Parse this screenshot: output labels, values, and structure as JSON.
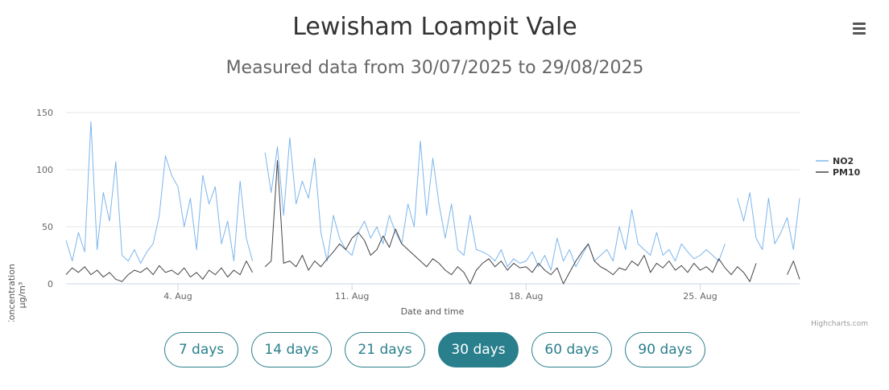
{
  "title": "Lewisham Loampit Vale",
  "subtitle": "Measured data from 30/07/2025 to 29/08/2025",
  "credits": "Highcharts.com",
  "menu_icon": "hamburger-menu-icon",
  "range_buttons": [
    {
      "label": "7 days",
      "active": false
    },
    {
      "label": "14 days",
      "active": false
    },
    {
      "label": "21 days",
      "active": false
    },
    {
      "label": "30 days",
      "active": true
    },
    {
      "label": "60 days",
      "active": false
    },
    {
      "label": "90 days",
      "active": false
    }
  ],
  "colors": {
    "accent": "#2a7f8c",
    "no2": "#7cb5ec",
    "pm10": "#434348"
  },
  "chart_data": {
    "type": "line",
    "xlabel": "Date and time",
    "ylabel": "Concentration",
    "yunit": "µg/m³",
    "ylim": [
      0,
      150
    ],
    "yticks": [
      0,
      50,
      100,
      150
    ],
    "xlim": [
      "2025-07-30T12:00",
      "2025-08-29T00:00"
    ],
    "xticks": [
      {
        "date": "2025-08-04",
        "label": "4. Aug"
      },
      {
        "date": "2025-08-11",
        "label": "11. Aug"
      },
      {
        "date": "2025-08-18",
        "label": "18. Aug"
      },
      {
        "date": "2025-08-25",
        "label": "25. Aug"
      }
    ],
    "grid": true,
    "legend": "right",
    "series": [
      {
        "name": "NO2",
        "color": "#7cb5ec",
        "points": [
          [
            "2025-07-30T12:00",
            38
          ],
          [
            "2025-07-30T18:00",
            20
          ],
          [
            "2025-07-31T00:00",
            45
          ],
          [
            "2025-07-31T06:00",
            28
          ],
          [
            "2025-07-31T12:00",
            142
          ],
          [
            "2025-07-31T18:00",
            30
          ],
          [
            "2025-08-01T00:00",
            80
          ],
          [
            "2025-08-01T06:00",
            55
          ],
          [
            "2025-08-01T12:00",
            107
          ],
          [
            "2025-08-01T18:00",
            25
          ],
          [
            "2025-08-02T00:00",
            20
          ],
          [
            "2025-08-02T06:00",
            30
          ],
          [
            "2025-08-02T12:00",
            18
          ],
          [
            "2025-08-02T18:00",
            28
          ],
          [
            "2025-08-03T00:00",
            35
          ],
          [
            "2025-08-03T06:00",
            60
          ],
          [
            "2025-08-03T12:00",
            112
          ],
          [
            "2025-08-03T18:00",
            95
          ],
          [
            "2025-08-04T00:00",
            85
          ],
          [
            "2025-08-04T06:00",
            50
          ],
          [
            "2025-08-04T12:00",
            75
          ],
          [
            "2025-08-04T18:00",
            30
          ],
          [
            "2025-08-05T00:00",
            95
          ],
          [
            "2025-08-05T06:00",
            70
          ],
          [
            "2025-08-05T12:00",
            85
          ],
          [
            "2025-08-05T18:00",
            35
          ],
          [
            "2025-08-06T00:00",
            55
          ],
          [
            "2025-08-06T06:00",
            20
          ],
          [
            "2025-08-06T12:00",
            90
          ],
          [
            "2025-08-06T18:00",
            40
          ],
          [
            "2025-08-07T00:00",
            20
          ],
          null,
          [
            "2025-08-07T12:00",
            115
          ],
          [
            "2025-08-07T18:00",
            80
          ],
          [
            "2025-08-08T00:00",
            120
          ],
          [
            "2025-08-08T06:00",
            60
          ],
          [
            "2025-08-08T12:00",
            128
          ],
          [
            "2025-08-08T18:00",
            70
          ],
          [
            "2025-08-09T00:00",
            90
          ],
          [
            "2025-08-09T06:00",
            75
          ],
          [
            "2025-08-09T12:00",
            110
          ],
          [
            "2025-08-09T18:00",
            45
          ],
          [
            "2025-08-10T00:00",
            20
          ],
          [
            "2025-08-10T06:00",
            60
          ],
          [
            "2025-08-10T12:00",
            40
          ],
          [
            "2025-08-10T18:00",
            30
          ],
          [
            "2025-08-11T00:00",
            25
          ],
          [
            "2025-08-11T06:00",
            45
          ],
          [
            "2025-08-11T12:00",
            55
          ],
          [
            "2025-08-11T18:00",
            40
          ],
          [
            "2025-08-12T00:00",
            50
          ],
          [
            "2025-08-12T06:00",
            35
          ],
          [
            "2025-08-12T12:00",
            60
          ],
          [
            "2025-08-12T18:00",
            45
          ],
          [
            "2025-08-13T00:00",
            35
          ],
          [
            "2025-08-13T06:00",
            70
          ],
          [
            "2025-08-13T12:00",
            50
          ],
          [
            "2025-08-13T18:00",
            125
          ],
          [
            "2025-08-14T00:00",
            60
          ],
          [
            "2025-08-14T06:00",
            110
          ],
          [
            "2025-08-14T12:00",
            70
          ],
          [
            "2025-08-14T18:00",
            40
          ],
          [
            "2025-08-15T00:00",
            70
          ],
          [
            "2025-08-15T06:00",
            30
          ],
          [
            "2025-08-15T12:00",
            25
          ],
          [
            "2025-08-15T18:00",
            60
          ],
          [
            "2025-08-16T00:00",
            30
          ],
          [
            "2025-08-16T06:00",
            28
          ],
          [
            "2025-08-16T12:00",
            25
          ],
          [
            "2025-08-16T18:00",
            20
          ],
          [
            "2025-08-17T00:00",
            30
          ],
          [
            "2025-08-17T06:00",
            15
          ],
          [
            "2025-08-17T12:00",
            22
          ],
          [
            "2025-08-17T18:00",
            18
          ],
          [
            "2025-08-18T00:00",
            20
          ],
          [
            "2025-08-18T06:00",
            28
          ],
          [
            "2025-08-18T12:00",
            15
          ],
          [
            "2025-08-18T18:00",
            25
          ],
          [
            "2025-08-19T00:00",
            12
          ],
          [
            "2025-08-19T06:00",
            40
          ],
          [
            "2025-08-19T12:00",
            20
          ],
          [
            "2025-08-19T18:00",
            30
          ],
          [
            "2025-08-20T00:00",
            15
          ],
          [
            "2025-08-20T06:00",
            25
          ],
          [
            "2025-08-20T12:00",
            35
          ],
          [
            "2025-08-20T18:00",
            20
          ],
          [
            "2025-08-21T00:00",
            25
          ],
          [
            "2025-08-21T06:00",
            30
          ],
          [
            "2025-08-21T12:00",
            20
          ],
          [
            "2025-08-21T18:00",
            50
          ],
          [
            "2025-08-22T00:00",
            30
          ],
          [
            "2025-08-22T06:00",
            65
          ],
          [
            "2025-08-22T12:00",
            35
          ],
          [
            "2025-08-22T18:00",
            30
          ],
          [
            "2025-08-23T00:00",
            25
          ],
          [
            "2025-08-23T06:00",
            45
          ],
          [
            "2025-08-23T12:00",
            25
          ],
          [
            "2025-08-23T18:00",
            30
          ],
          [
            "2025-08-24T00:00",
            20
          ],
          [
            "2025-08-24T06:00",
            35
          ],
          [
            "2025-08-24T12:00",
            28
          ],
          [
            "2025-08-24T18:00",
            22
          ],
          [
            "2025-08-25T00:00",
            25
          ],
          [
            "2025-08-25T06:00",
            30
          ],
          [
            "2025-08-25T12:00",
            25
          ],
          [
            "2025-08-25T18:00",
            20
          ],
          [
            "2025-08-26T00:00",
            35
          ],
          null,
          [
            "2025-08-26T12:00",
            75
          ],
          [
            "2025-08-26T18:00",
            55
          ],
          [
            "2025-08-27T00:00",
            80
          ],
          [
            "2025-08-27T06:00",
            40
          ],
          [
            "2025-08-27T12:00",
            30
          ],
          [
            "2025-08-27T18:00",
            75
          ],
          [
            "2025-08-28T00:00",
            35
          ],
          [
            "2025-08-28T06:00",
            45
          ],
          [
            "2025-08-28T12:00",
            58
          ],
          [
            "2025-08-28T18:00",
            30
          ],
          [
            "2025-08-29T00:00",
            75
          ]
        ]
      },
      {
        "name": "PM10",
        "color": "#434348",
        "points": [
          [
            "2025-07-30T12:00",
            8
          ],
          [
            "2025-07-30T18:00",
            14
          ],
          [
            "2025-07-31T00:00",
            10
          ],
          [
            "2025-07-31T06:00",
            15
          ],
          [
            "2025-07-31T12:00",
            8
          ],
          [
            "2025-07-31T18:00",
            12
          ],
          [
            "2025-08-01T00:00",
            6
          ],
          [
            "2025-08-01T06:00",
            10
          ],
          [
            "2025-08-01T12:00",
            4
          ],
          [
            "2025-08-01T18:00",
            2
          ],
          [
            "2025-08-02T00:00",
            8
          ],
          [
            "2025-08-02T06:00",
            12
          ],
          [
            "2025-08-02T12:00",
            10
          ],
          [
            "2025-08-02T18:00",
            14
          ],
          [
            "2025-08-03T00:00",
            8
          ],
          [
            "2025-08-03T06:00",
            16
          ],
          [
            "2025-08-03T12:00",
            10
          ],
          [
            "2025-08-03T18:00",
            12
          ],
          [
            "2025-08-04T00:00",
            8
          ],
          [
            "2025-08-04T06:00",
            14
          ],
          [
            "2025-08-04T12:00",
            6
          ],
          [
            "2025-08-04T18:00",
            10
          ],
          [
            "2025-08-05T00:00",
            4
          ],
          [
            "2025-08-05T06:00",
            12
          ],
          [
            "2025-08-05T12:00",
            8
          ],
          [
            "2025-08-05T18:00",
            14
          ],
          [
            "2025-08-06T00:00",
            6
          ],
          [
            "2025-08-06T06:00",
            12
          ],
          [
            "2025-08-06T12:00",
            8
          ],
          [
            "2025-08-06T18:00",
            20
          ],
          [
            "2025-08-07T00:00",
            10
          ],
          null,
          [
            "2025-08-07T12:00",
            15
          ],
          [
            "2025-08-07T18:00",
            20
          ],
          [
            "2025-08-08T00:00",
            108
          ],
          [
            "2025-08-08T06:00",
            18
          ],
          [
            "2025-08-08T12:00",
            20
          ],
          [
            "2025-08-08T18:00",
            15
          ],
          [
            "2025-08-09T00:00",
            25
          ],
          [
            "2025-08-09T06:00",
            12
          ],
          [
            "2025-08-09T12:00",
            20
          ],
          [
            "2025-08-09T18:00",
            15
          ],
          [
            "2025-08-10T00:00",
            22
          ],
          [
            "2025-08-10T06:00",
            28
          ],
          [
            "2025-08-10T12:00",
            35
          ],
          [
            "2025-08-10T18:00",
            30
          ],
          [
            "2025-08-11T00:00",
            40
          ],
          [
            "2025-08-11T06:00",
            45
          ],
          [
            "2025-08-11T12:00",
            38
          ],
          [
            "2025-08-11T18:00",
            25
          ],
          [
            "2025-08-12T00:00",
            30
          ],
          [
            "2025-08-12T06:00",
            42
          ],
          [
            "2025-08-12T12:00",
            32
          ],
          [
            "2025-08-12T18:00",
            48
          ],
          [
            "2025-08-13T00:00",
            35
          ],
          [
            "2025-08-13T06:00",
            30
          ],
          [
            "2025-08-13T12:00",
            25
          ],
          [
            "2025-08-13T18:00",
            20
          ],
          [
            "2025-08-14T00:00",
            15
          ],
          [
            "2025-08-14T06:00",
            22
          ],
          [
            "2025-08-14T12:00",
            18
          ],
          [
            "2025-08-14T18:00",
            12
          ],
          [
            "2025-08-15T00:00",
            8
          ],
          [
            "2025-08-15T06:00",
            15
          ],
          [
            "2025-08-15T12:00",
            10
          ],
          [
            "2025-08-15T18:00",
            0
          ],
          [
            "2025-08-16T00:00",
            12
          ],
          [
            "2025-08-16T06:00",
            18
          ],
          [
            "2025-08-16T12:00",
            22
          ],
          [
            "2025-08-16T18:00",
            15
          ],
          [
            "2025-08-17T00:00",
            20
          ],
          [
            "2025-08-17T06:00",
            12
          ],
          [
            "2025-08-17T12:00",
            18
          ],
          [
            "2025-08-17T18:00",
            14
          ],
          [
            "2025-08-18T00:00",
            15
          ],
          [
            "2025-08-18T06:00",
            10
          ],
          [
            "2025-08-18T12:00",
            18
          ],
          [
            "2025-08-18T18:00",
            12
          ],
          [
            "2025-08-19T00:00",
            8
          ],
          [
            "2025-08-19T06:00",
            14
          ],
          [
            "2025-08-19T12:00",
            0
          ],
          [
            "2025-08-19T18:00",
            10
          ],
          [
            "2025-08-20T00:00",
            20
          ],
          [
            "2025-08-20T06:00",
            28
          ],
          [
            "2025-08-20T12:00",
            35
          ],
          [
            "2025-08-20T18:00",
            20
          ],
          [
            "2025-08-21T00:00",
            15
          ],
          [
            "2025-08-21T06:00",
            12
          ],
          [
            "2025-08-21T12:00",
            8
          ],
          [
            "2025-08-21T18:00",
            14
          ],
          [
            "2025-08-22T00:00",
            12
          ],
          [
            "2025-08-22T06:00",
            20
          ],
          [
            "2025-08-22T12:00",
            16
          ],
          [
            "2025-08-22T18:00",
            25
          ],
          [
            "2025-08-23T00:00",
            10
          ],
          [
            "2025-08-23T06:00",
            18
          ],
          [
            "2025-08-23T12:00",
            14
          ],
          [
            "2025-08-23T18:00",
            20
          ],
          [
            "2025-08-24T00:00",
            12
          ],
          [
            "2025-08-24T06:00",
            16
          ],
          [
            "2025-08-24T12:00",
            10
          ],
          [
            "2025-08-24T18:00",
            18
          ],
          [
            "2025-08-25T00:00",
            12
          ],
          [
            "2025-08-25T06:00",
            15
          ],
          [
            "2025-08-25T12:00",
            10
          ],
          [
            "2025-08-25T18:00",
            22
          ],
          [
            "2025-08-26T00:00",
            14
          ],
          [
            "2025-08-26T06:00",
            8
          ],
          [
            "2025-08-26T12:00",
            15
          ],
          [
            "2025-08-26T18:00",
            10
          ],
          [
            "2025-08-27T00:00",
            2
          ],
          [
            "2025-08-27T06:00",
            18
          ],
          null,
          [
            "2025-08-28T12:00",
            8
          ],
          [
            "2025-08-28T18:00",
            20
          ],
          [
            "2025-08-29T00:00",
            4
          ]
        ]
      }
    ]
  }
}
